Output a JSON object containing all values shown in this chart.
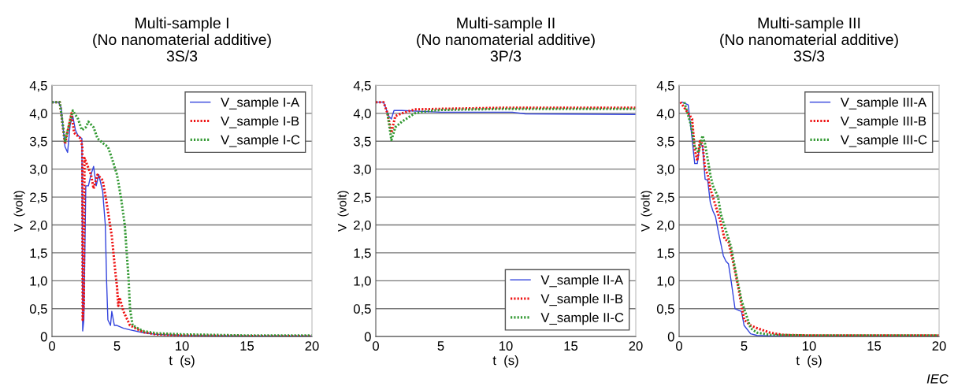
{
  "chart_data": [
    {
      "type": "line",
      "title": "Multi-sample I\n(No nanomaterial additive)\n3S/3",
      "xlabel": "t  (s)",
      "ylabel": "V  (volt)",
      "xlim": [
        0,
        20
      ],
      "xticks": [
        0,
        5,
        10,
        15,
        20
      ],
      "ylim": [
        0,
        4.5
      ],
      "yticks": [
        0,
        {
          "value": 0.5,
          "label": "0,5"
        },
        {
          "value": 1.0,
          "label": "1,0"
        },
        {
          "value": 1.5,
          "label": "1,5"
        },
        {
          "value": 2.0,
          "label": "2,0"
        },
        {
          "value": 2.5,
          "label": "2,5"
        },
        {
          "value": 3.0,
          "label": "3,0"
        },
        {
          "value": 3.5,
          "label": "3,5"
        },
        {
          "value": 4.0,
          "label": "4,0"
        },
        {
          "value": 4.5,
          "label": "4,5"
        }
      ],
      "grid": "y",
      "legend": "top right",
      "series": [
        {
          "name": "V_sample I-A",
          "color": "#3344dd",
          "line_style": "solid",
          "x": [
            0,
            0.5,
            0.7,
            1.0,
            1.2,
            1.4,
            1.6,
            1.8,
            2.0,
            2.3,
            2.36,
            2.45,
            2.6,
            2.8,
            3.0,
            3.2,
            3.4,
            3.6,
            3.9,
            4.1,
            4.2,
            4.3,
            4.5,
            4.6,
            4.8,
            5.0,
            5.5,
            6,
            7,
            8,
            10,
            15,
            20
          ],
          "values": [
            4.2,
            4.2,
            4.1,
            3.4,
            3.3,
            3.8,
            3.95,
            3.7,
            3.6,
            3.55,
            0.1,
            0.3,
            2.7,
            2.7,
            2.9,
            3.05,
            2.7,
            2.9,
            2.6,
            2.0,
            1.0,
            0.3,
            0.2,
            0.45,
            0.2,
            0.2,
            0.15,
            0.12,
            0.07,
            0.04,
            0.02,
            0.01,
            0.01
          ]
        },
        {
          "name": "V_sample I-B",
          "color": "#ee1111",
          "line_style": "dotted",
          "x": [
            0,
            0.6,
            1.0,
            1.5,
            1.7,
            2.2,
            2.33,
            2.36,
            2.45,
            2.5,
            3.0,
            3.2,
            3.5,
            3.9,
            4.2,
            4.6,
            4.9,
            5.0,
            5.1,
            5.2,
            5.5,
            6,
            7,
            8,
            10,
            15,
            20
          ],
          "values": [
            4.2,
            4.2,
            3.45,
            4.0,
            3.65,
            3.55,
            3.4,
            0.3,
            0.6,
            3.2,
            2.9,
            2.65,
            2.9,
            2.8,
            2.4,
            1.8,
            1.1,
            0.9,
            0.55,
            0.7,
            0.45,
            0.2,
            0.08,
            0.04,
            0.02,
            0.01,
            0.01
          ]
        },
        {
          "name": "V_sample I-C",
          "color": "#339933",
          "line_style": "dotted",
          "x": [
            0,
            0.6,
            1.0,
            1.6,
            2.0,
            2.3,
            2.6,
            2.8,
            3.2,
            3.5,
            4.0,
            4.3,
            4.6,
            5.0,
            5.3,
            5.6,
            5.9,
            6.0,
            6.2,
            7,
            8,
            10,
            15,
            20
          ],
          "values": [
            4.2,
            4.2,
            3.5,
            4.05,
            3.9,
            3.7,
            3.75,
            3.85,
            3.75,
            3.55,
            3.45,
            3.4,
            3.2,
            2.9,
            2.5,
            2.0,
            1.0,
            0.5,
            0.2,
            0.1,
            0.06,
            0.04,
            0.02,
            0.02
          ]
        }
      ]
    },
    {
      "type": "line",
      "title": "Multi-sample II\n(No nanomaterial additive)\n3P/3",
      "xlabel": "t  (s)",
      "ylabel": "V  (volt)",
      "xlim": [
        0,
        20
      ],
      "xticks": [
        0,
        5,
        10,
        15,
        20
      ],
      "ylim": [
        0,
        4.5
      ],
      "yticks": [
        0,
        {
          "value": 0.5,
          "label": "0,5"
        },
        {
          "value": 1.0,
          "label": "1,0"
        },
        {
          "value": 1.5,
          "label": "1,5"
        },
        {
          "value": 2.0,
          "label": "2,0"
        },
        {
          "value": 2.5,
          "label": "2,5"
        },
        {
          "value": 3.0,
          "label": "3,0"
        },
        {
          "value": 3.5,
          "label": "3,5"
        },
        {
          "value": 4.0,
          "label": "4,0"
        },
        {
          "value": 4.5,
          "label": "4,5"
        }
      ],
      "grid": "y",
      "legend": "lower right",
      "series": [
        {
          "name": "V_sample II-A",
          "color": "#3344dd",
          "line_style": "solid",
          "x": [
            0,
            0.6,
            1.0,
            1.2,
            1.4,
            2,
            5,
            9.5,
            10.5,
            11.5,
            20
          ],
          "values": [
            4.2,
            4.2,
            3.95,
            3.9,
            4.05,
            4.05,
            4.02,
            4.02,
            4.02,
            3.99,
            3.98
          ]
        },
        {
          "name": "V_sample II-B",
          "color": "#ee1111",
          "line_style": "dotted",
          "x": [
            0,
            0.6,
            0.9,
            1.2,
            1.5,
            2,
            3,
            5,
            10,
            20
          ],
          "values": [
            4.2,
            4.2,
            4.0,
            3.65,
            3.95,
            4.0,
            4.07,
            4.08,
            4.1,
            4.1
          ]
        },
        {
          "name": "V_sample II-C",
          "color": "#339933",
          "line_style": "dotted",
          "x": [
            0.9,
            1.2,
            1.5,
            2,
            3,
            4,
            5,
            10,
            20
          ],
          "values": [
            4.0,
            3.52,
            3.75,
            3.85,
            4.0,
            4.04,
            4.06,
            4.08,
            4.08
          ]
        }
      ]
    },
    {
      "type": "line",
      "title": "Multi-sample III\n(No nanomaterial additive)\n3S/3",
      "xlabel": "t  (s)",
      "ylabel": "V  (volt)",
      "xlim": [
        0,
        20
      ],
      "xticks": [
        0,
        5,
        10,
        15,
        20
      ],
      "ylim": [
        0,
        4.5
      ],
      "yticks": [
        0,
        {
          "value": 0.5,
          "label": "0,5"
        },
        {
          "value": 1.0,
          "label": "1,0"
        },
        {
          "value": 1.5,
          "label": "1,5"
        },
        {
          "value": 2.0,
          "label": "2,0"
        },
        {
          "value": 2.5,
          "label": "2,5"
        },
        {
          "value": 3.0,
          "label": "3,0"
        },
        {
          "value": 3.5,
          "label": "3,5"
        },
        {
          "value": 4.0,
          "label": "4,0"
        },
        {
          "value": 4.5,
          "label": "4,5"
        }
      ],
      "grid": "y",
      "legend": "top right",
      "annotations": [
        "IEC"
      ],
      "series": [
        {
          "name": "V_sample III-A",
          "color": "#3344dd",
          "line_style": "solid",
          "x": [
            0.25,
            0.7,
            1.0,
            1.2,
            1.4,
            1.6,
            1.8,
            2.0,
            2.2,
            2.4,
            2.6,
            2.8,
            3.0,
            3.4,
            3.6,
            3.8,
            4.0,
            4.3,
            4.8,
            5.0,
            5.5,
            6,
            7,
            20
          ],
          "values": [
            4.2,
            4.15,
            3.55,
            3.1,
            3.1,
            3.45,
            3.42,
            2.82,
            2.8,
            2.4,
            2.25,
            2.15,
            1.9,
            1.45,
            1.35,
            1.3,
            1.0,
            0.5,
            0.45,
            0.2,
            0.05,
            0.02,
            0.01,
            0.01
          ]
        },
        {
          "name": "V_sample III-B",
          "color": "#ee1111",
          "line_style": "dotted",
          "x": [
            0.1,
            1.0,
            1.2,
            1.4,
            1.6,
            1.8,
            2.0,
            2.2,
            2.4,
            2.6,
            2.8,
            3.2,
            3.5,
            3.8,
            4.0,
            4.5,
            5.0,
            5.5,
            6,
            7,
            8,
            10,
            15,
            20
          ],
          "values": [
            4.2,
            3.9,
            3.35,
            3.15,
            3.5,
            3.45,
            3.0,
            2.9,
            2.65,
            2.5,
            2.35,
            2.05,
            1.75,
            1.7,
            1.5,
            0.95,
            0.3,
            0.2,
            0.15,
            0.07,
            0.03,
            0.02,
            0.02,
            0.02
          ]
        },
        {
          "name": "V_sample III-C",
          "color": "#339933",
          "line_style": "dotted",
          "x": [
            0.4,
            0.9,
            1.2,
            1.5,
            1.8,
            2.0,
            2.4,
            2.6,
            3.0,
            3.2,
            3.6,
            4.0,
            4.4,
            4.8,
            5.0,
            5.5,
            6,
            7,
            10,
            20
          ],
          "values": [
            4.2,
            3.8,
            3.4,
            3.3,
            3.6,
            3.45,
            2.9,
            2.7,
            2.5,
            2.2,
            1.9,
            1.6,
            1.1,
            0.65,
            0.5,
            0.15,
            0.07,
            0.03,
            0.02,
            0.02
          ]
        }
      ]
    }
  ]
}
